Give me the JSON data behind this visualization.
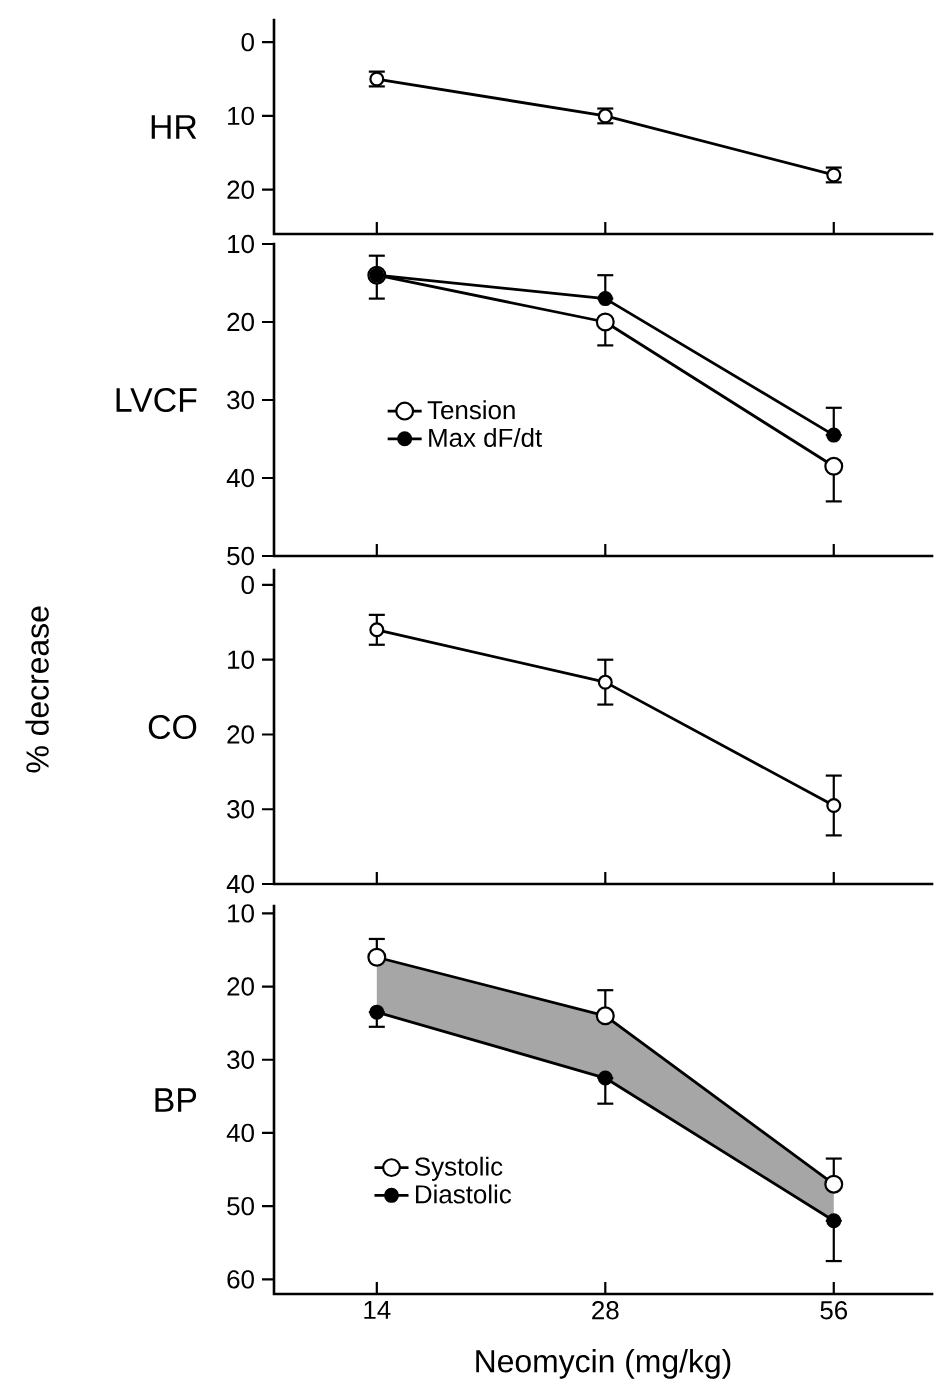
{
  "chart_data": [
    {
      "type": "line",
      "ylabel": "HR",
      "categories": [
        "14",
        "28",
        "56"
      ],
      "ylim": [
        26,
        -3
      ],
      "yticks": [
        0,
        10,
        20
      ],
      "tick_labels": "y",
      "marker": "circle",
      "line_style": "solid",
      "series": [
        {
          "color": "#ffffff",
          "values": [
            5,
            10,
            18
          ],
          "errors": [
            1,
            1,
            1
          ]
        }
      ]
    },
    {
      "type": "line",
      "ylabel": "LVCF",
      "categories": [
        "14",
        "28",
        "56"
      ],
      "ylim": [
        50,
        10
      ],
      "yticks": [
        10,
        20,
        30,
        40,
        50
      ],
      "tick_labels": "y",
      "marker": "circle",
      "line_style": "solid",
      "legend": "left",
      "series": [
        {
          "name": "Tension",
          "color": "#ffffff",
          "values": [
            14,
            20,
            38.5
          ],
          "errors": [
            [
              14,
              17
            ],
            [
              20,
              23
            ],
            [
              38.5,
              43
            ]
          ]
        },
        {
          "name": "Max dF/dt",
          "color": "#000000",
          "values": [
            14,
            17,
            34.5
          ],
          "errors": [
            [
              11.5,
              14
            ],
            [
              14,
              17
            ],
            [
              31,
              34.5
            ]
          ]
        }
      ]
    },
    {
      "type": "line",
      "ylabel": "CO",
      "categories": [
        "14",
        "28",
        "56"
      ],
      "ylim": [
        40,
        -2
      ],
      "yticks": [
        0,
        10,
        20,
        30,
        40
      ],
      "tick_labels": "y",
      "marker": "circle",
      "line_style": "solid",
      "annotations": [
        "% decrease"
      ],
      "series": [
        {
          "color": "#ffffff",
          "values": [
            6,
            13,
            29.5
          ],
          "errors": [
            2,
            3,
            4
          ]
        }
      ]
    },
    {
      "type": "line",
      "ylabel": "BP",
      "xlabel": "Neomycin (mg/kg)",
      "categories": [
        "14",
        "28",
        "56"
      ],
      "ylim": [
        62,
        9
      ],
      "yticks": [
        10,
        20,
        30,
        40,
        50,
        60
      ],
      "marker": "circle",
      "line_style": "solid",
      "legend": "bottom left",
      "series": [
        {
          "name": "Systolic",
          "color": "#ffffff",
          "values": [
            16,
            24,
            47
          ],
          "errors": [
            [
              13.5,
              16
            ],
            [
              20.5,
              24
            ],
            [
              43.5,
              47
            ]
          ],
          "lower": [
            16,
            24,
            47
          ],
          "upper": [
            23.5,
            32.5,
            52
          ]
        },
        {
          "name": "Diastolic",
          "color": "#000000",
          "values": [
            23.5,
            32.5,
            52
          ],
          "errors": [
            [
              23.5,
              25.5
            ],
            [
              32.5,
              36
            ],
            [
              52,
              57.5
            ]
          ]
        }
      ]
    }
  ]
}
